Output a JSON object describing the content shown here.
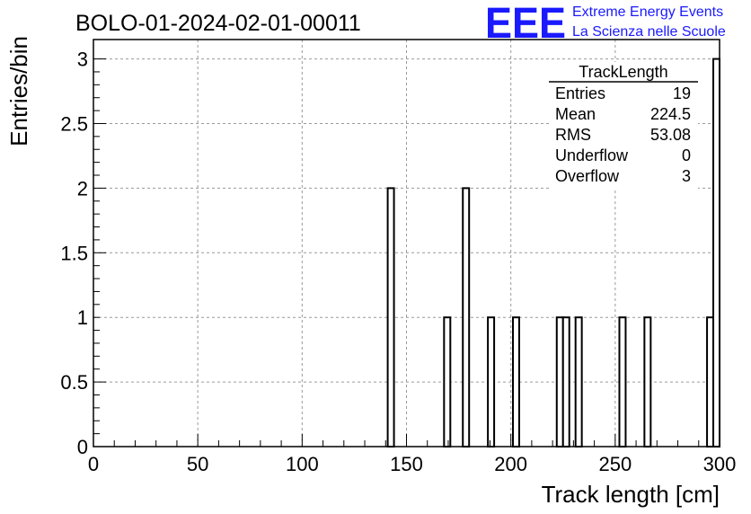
{
  "header": {
    "run_title": "BOLO-01-2024-02-01-00011",
    "logo_letters": "EEE",
    "brand_line1": "Extreme Energy Events",
    "brand_line2": "La Scienza nelle Scuole",
    "brand_color": "#1a1aff"
  },
  "stats_box": {
    "title": "TrackLength",
    "rows": [
      {
        "label": "Entries",
        "value": "19"
      },
      {
        "label": "Mean",
        "value": "224.5"
      },
      {
        "label": "RMS",
        "value": "53.08"
      },
      {
        "label": "Underflow",
        "value": "0"
      },
      {
        "label": "Overflow",
        "value": "3"
      }
    ]
  },
  "chart_data": {
    "type": "bar",
    "title": "BOLO-01-2024-02-01-00011",
    "xlabel": "Track length [cm]",
    "ylabel": "Entries/bin",
    "xlim": [
      0,
      300
    ],
    "ylim": [
      0,
      3.15
    ],
    "bin_width": 3,
    "x_ticks": [
      0,
      50,
      100,
      150,
      200,
      250,
      300
    ],
    "x_tick_labels": [
      "0",
      "50",
      "100",
      "150",
      "200",
      "250",
      "300"
    ],
    "y_ticks": [
      0,
      0.5,
      1,
      1.5,
      2,
      2.5,
      3
    ],
    "y_tick_labels": [
      "0",
      "0.5",
      "1",
      "1.5",
      "2",
      "2.5",
      "3"
    ],
    "grid": true,
    "legend": "top-right stats box",
    "bins": [
      {
        "x_low": 141,
        "count": 2
      },
      {
        "x_low": 168,
        "count": 1
      },
      {
        "x_low": 177,
        "count": 2
      },
      {
        "x_low": 189,
        "count": 1
      },
      {
        "x_low": 201,
        "count": 1
      },
      {
        "x_low": 222,
        "count": 1
      },
      {
        "x_low": 225,
        "count": 1
      },
      {
        "x_low": 231,
        "count": 1
      },
      {
        "x_low": 252,
        "count": 1
      },
      {
        "x_low": 264,
        "count": 1
      },
      {
        "x_low": 294,
        "count": 1
      },
      {
        "x_low": 297,
        "count": 3
      }
    ]
  }
}
